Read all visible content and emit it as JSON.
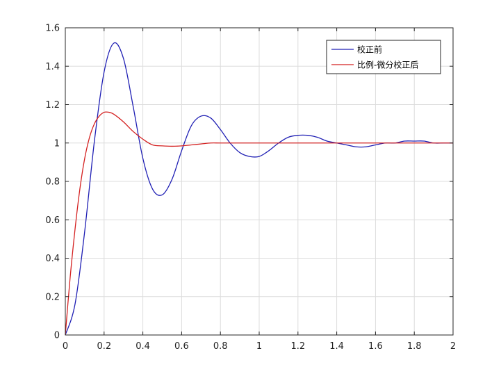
{
  "chart_data": {
    "type": "line",
    "title": "",
    "xlabel": "",
    "ylabel": "",
    "xlim": [
      0,
      2
    ],
    "ylim": [
      0,
      1.6
    ],
    "grid": true,
    "legend_position": "top-right",
    "x_ticks": [
      "0",
      "0.2",
      "0.4",
      "0.6",
      "0.8",
      "1",
      "1.2",
      "1.4",
      "1.6",
      "1.8",
      "2"
    ],
    "y_ticks": [
      "0",
      "0.2",
      "0.4",
      "0.6",
      "0.8",
      "1",
      "1.2",
      "1.4",
      "1.6"
    ],
    "series": [
      {
        "name": "校正前",
        "color": "#1f1fb4",
        "x": [
          0,
          0.05,
          0.1,
          0.15,
          0.2,
          0.25,
          0.3,
          0.35,
          0.4,
          0.45,
          0.5,
          0.55,
          0.6,
          0.65,
          0.7,
          0.75,
          0.8,
          0.85,
          0.9,
          0.95,
          1.0,
          1.05,
          1.1,
          1.15,
          1.2,
          1.25,
          1.3,
          1.35,
          1.4,
          1.45,
          1.5,
          1.55,
          1.6,
          1.65,
          1.7,
          1.75,
          1.8,
          1.85,
          1.9,
          1.95,
          2.0
        ],
        "y": [
          0,
          0.16,
          0.54,
          1.01,
          1.37,
          1.52,
          1.44,
          1.19,
          0.92,
          0.76,
          0.73,
          0.81,
          0.96,
          1.09,
          1.14,
          1.13,
          1.07,
          1.0,
          0.95,
          0.93,
          0.93,
          0.96,
          1.0,
          1.03,
          1.04,
          1.04,
          1.03,
          1.01,
          1.0,
          0.99,
          0.98,
          0.98,
          0.99,
          1.0,
          1.0,
          1.01,
          1.01,
          1.01,
          1.0,
          1.0,
          1.0
        ]
      },
      {
        "name": "比例-微分校正后",
        "color": "#d42020",
        "x": [
          0,
          0.025,
          0.05,
          0.075,
          0.1,
          0.125,
          0.15,
          0.175,
          0.2,
          0.225,
          0.25,
          0.3,
          0.35,
          0.4,
          0.45,
          0.5,
          0.55,
          0.6,
          0.65,
          0.7,
          0.75,
          0.8,
          0.9,
          1.0,
          1.2,
          1.4,
          1.6,
          1.8,
          2.0
        ],
        "y": [
          0,
          0.3,
          0.55,
          0.76,
          0.92,
          1.03,
          1.1,
          1.14,
          1.16,
          1.16,
          1.15,
          1.11,
          1.06,
          1.02,
          0.99,
          0.985,
          0.983,
          0.985,
          0.99,
          0.995,
          1.0,
          1.0,
          1.0,
          1.0,
          1.0,
          1.0,
          1.0,
          1.0,
          1.0
        ]
      }
    ]
  }
}
